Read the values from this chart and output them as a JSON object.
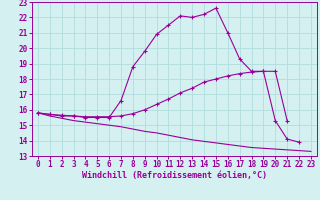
{
  "line1_x": [
    0,
    1,
    2,
    3,
    4,
    5,
    6,
    7,
    8,
    9,
    10,
    11,
    12,
    13,
    14,
    15,
    16,
    17,
    18,
    19,
    20,
    21,
    22
  ],
  "line1_y": [
    15.8,
    15.7,
    15.6,
    15.6,
    15.5,
    15.5,
    15.5,
    16.6,
    18.8,
    19.8,
    20.9,
    21.5,
    22.1,
    22.0,
    22.2,
    22.6,
    21.0,
    19.3,
    18.5,
    18.5,
    15.3,
    14.1,
    13.9
  ],
  "line2_x": [
    0,
    1,
    2,
    3,
    4,
    5,
    6,
    7,
    8,
    9,
    10,
    11,
    12,
    13,
    14,
    15,
    16,
    17,
    18,
    19,
    20,
    21
  ],
  "line2_y": [
    15.8,
    15.7,
    15.65,
    15.6,
    15.55,
    15.55,
    15.55,
    15.6,
    15.75,
    16.0,
    16.35,
    16.7,
    17.1,
    17.4,
    17.8,
    18.0,
    18.2,
    18.35,
    18.45,
    18.5,
    18.5,
    15.3
  ],
  "line3_x": [
    0,
    1,
    2,
    3,
    4,
    5,
    6,
    7,
    8,
    9,
    10,
    11,
    12,
    13,
    14,
    15,
    16,
    17,
    18,
    19,
    20,
    21,
    22,
    23
  ],
  "line3_y": [
    15.8,
    15.6,
    15.45,
    15.3,
    15.2,
    15.1,
    15.0,
    14.9,
    14.75,
    14.6,
    14.5,
    14.35,
    14.2,
    14.05,
    13.95,
    13.85,
    13.75,
    13.65,
    13.55,
    13.5,
    13.45,
    13.4,
    13.35,
    13.3
  ],
  "color": "#990099",
  "bg_color": "#d5f0f0",
  "grid_color": "#b0dede",
  "xlabel": "Windchill (Refroidissement éolien,°C)",
  "xlim": [
    -0.5,
    23.5
  ],
  "ylim": [
    13,
    23
  ],
  "xticks": [
    0,
    1,
    2,
    3,
    4,
    5,
    6,
    7,
    8,
    9,
    10,
    11,
    12,
    13,
    14,
    15,
    16,
    17,
    18,
    19,
    20,
    21,
    22,
    23
  ],
  "yticks": [
    13,
    14,
    15,
    16,
    17,
    18,
    19,
    20,
    21,
    22,
    23
  ],
  "tick_fontsize": 5.5,
  "xlabel_fontsize": 6.0
}
